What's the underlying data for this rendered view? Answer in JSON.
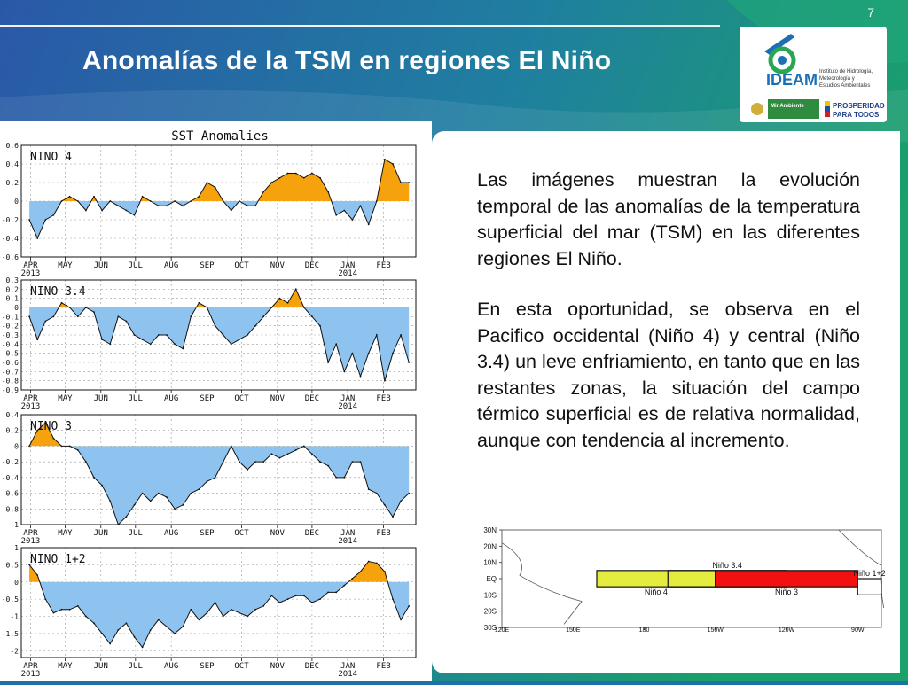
{
  "slide": {
    "number": "7",
    "title": "Anomalías de la TSM en regiones El Niño"
  },
  "logos": {
    "ideam_text": "IDEAM",
    "ideam_subtitle": [
      "Instituto de Hidrología,",
      "Meteorología y",
      "Estudios Ambientales"
    ],
    "minambiente_text": "MinAmbiente",
    "prosperidad_text": [
      "PROSPERIDAD",
      "PARA TODOS"
    ]
  },
  "description": {
    "paragraphs": [
      "Las imágenes muestran la evolución temporal de las anomalías de la temperatura superficial del mar (TSM) en las diferentes regiones El Niño.",
      "En esta oportunidad, se observa en el Pacifico occidental (Niño 4) y central (Niño 3.4) un leve enfriamiento, en tanto que en las restantes zonas, la situación del campo térmico superficial es de relativa normalidad, aunque con tendencia al incremento."
    ]
  },
  "colors": {
    "positive_fill": "#f5a20c",
    "negative_fill": "#8ec3f0",
    "line": "#111111",
    "nino4_box": "#e4ec3e",
    "nino3_box": "#f21010"
  },
  "chart_data": [
    {
      "type": "area",
      "title": "SST Anomalies",
      "label": "NINO 4",
      "x": [
        "2013-03-31",
        "2013-04-07",
        "2013-04-14",
        "2013-04-21",
        "2013-04-28",
        "2013-05-05",
        "2013-05-12",
        "2013-05-19",
        "2013-05-26",
        "2013-06-02",
        "2013-06-09",
        "2013-06-16",
        "2013-06-23",
        "2013-06-30",
        "2013-07-07",
        "2013-07-14",
        "2013-07-21",
        "2013-07-28",
        "2013-08-04",
        "2013-08-11",
        "2013-08-18",
        "2013-08-25",
        "2013-09-01",
        "2013-09-08",
        "2013-09-15",
        "2013-09-22",
        "2013-09-29",
        "2013-10-06",
        "2013-10-13",
        "2013-10-20",
        "2013-10-27",
        "2013-11-03",
        "2013-11-10",
        "2013-11-17",
        "2013-11-24",
        "2013-12-01",
        "2013-12-08",
        "2013-12-15",
        "2013-12-22",
        "2013-12-29",
        "2014-01-05",
        "2014-01-12",
        "2014-01-19",
        "2014-01-26",
        "2014-02-02",
        "2014-02-09",
        "2014-02-16",
        "2014-02-23"
      ],
      "values": [
        -0.2,
        -0.4,
        -0.2,
        -0.15,
        0,
        0.05,
        0,
        -0.1,
        0.05,
        -0.1,
        0,
        -0.05,
        -0.1,
        -0.15,
        0.05,
        0,
        -0.05,
        -0.05,
        0,
        -0.05,
        0,
        0.05,
        0.2,
        0.15,
        0,
        -0.1,
        0,
        -0.05,
        -0.05,
        0.1,
        0.2,
        0.25,
        0.3,
        0.3,
        0.25,
        0.3,
        0.25,
        0.1,
        -0.15,
        -0.1,
        -0.2,
        -0.05,
        -0.25,
        0,
        0.45,
        0.4,
        0.2,
        0.2
      ],
      "ylim": [
        -0.6,
        0.6
      ],
      "yticks": [
        "0.6",
        "0.4",
        "0.2",
        "0",
        "-0.2",
        "-0.4",
        "-0.6"
      ],
      "xticks": [
        "APR",
        "MAY",
        "JUN",
        "JUL",
        "AUG",
        "SEP",
        "OCT",
        "NOV",
        "DEC",
        "JAN",
        "FEB"
      ],
      "year_labels": [
        "2013",
        "2014"
      ],
      "grid": true
    },
    {
      "type": "area",
      "label": "NINO 3.4",
      "x": [
        "2013-03-31",
        "2013-04-07",
        "2013-04-14",
        "2013-04-21",
        "2013-04-28",
        "2013-05-05",
        "2013-05-12",
        "2013-05-19",
        "2013-05-26",
        "2013-06-02",
        "2013-06-09",
        "2013-06-16",
        "2013-06-23",
        "2013-06-30",
        "2013-07-07",
        "2013-07-14",
        "2013-07-21",
        "2013-07-28",
        "2013-08-04",
        "2013-08-11",
        "2013-08-18",
        "2013-08-25",
        "2013-09-01",
        "2013-09-08",
        "2013-09-15",
        "2013-09-22",
        "2013-09-29",
        "2013-10-06",
        "2013-10-13",
        "2013-10-20",
        "2013-10-27",
        "2013-11-03",
        "2013-11-10",
        "2013-11-17",
        "2013-11-24",
        "2013-12-01",
        "2013-12-08",
        "2013-12-15",
        "2013-12-22",
        "2013-12-29",
        "2014-01-05",
        "2014-01-12",
        "2014-01-19",
        "2014-01-26",
        "2014-02-02",
        "2014-02-09",
        "2014-02-16",
        "2014-02-23"
      ],
      "values": [
        -0.1,
        -0.35,
        -0.15,
        -0.1,
        0.05,
        0,
        -0.1,
        0,
        -0.05,
        -0.35,
        -0.4,
        -0.1,
        -0.15,
        -0.3,
        -0.35,
        -0.4,
        -0.3,
        -0.3,
        -0.4,
        -0.45,
        -0.1,
        0.05,
        0,
        -0.2,
        -0.3,
        -0.4,
        -0.35,
        -0.3,
        -0.2,
        -0.1,
        0,
        0.1,
        0.05,
        0.2,
        0,
        -0.1,
        -0.2,
        -0.6,
        -0.4,
        -0.7,
        -0.5,
        -0.75,
        -0.5,
        -0.3,
        -0.8,
        -0.5,
        -0.3,
        -0.6
      ],
      "ylim": [
        -0.9,
        0.3
      ],
      "yticks": [
        "0.3",
        "0.2",
        "0.1",
        "0",
        "-0.1",
        "-0.2",
        "-0.3",
        "-0.4",
        "-0.5",
        "-0.6",
        "-0.7",
        "-0.8",
        "-0.9"
      ],
      "xticks": [
        "APR",
        "MAY",
        "JUN",
        "JUL",
        "AUG",
        "SEP",
        "OCT",
        "NOV",
        "DEC",
        "JAN",
        "FEB"
      ],
      "year_labels": [
        "2013",
        "2014"
      ],
      "grid": true
    },
    {
      "type": "area",
      "label": "NINO 3",
      "x": [
        "2013-03-31",
        "2013-04-07",
        "2013-04-14",
        "2013-04-21",
        "2013-04-28",
        "2013-05-05",
        "2013-05-12",
        "2013-05-19",
        "2013-05-26",
        "2013-06-02",
        "2013-06-09",
        "2013-06-16",
        "2013-06-23",
        "2013-06-30",
        "2013-07-07",
        "2013-07-14",
        "2013-07-21",
        "2013-07-28",
        "2013-08-04",
        "2013-08-11",
        "2013-08-18",
        "2013-08-25",
        "2013-09-01",
        "2013-09-08",
        "2013-09-15",
        "2013-09-22",
        "2013-09-29",
        "2013-10-06",
        "2013-10-13",
        "2013-10-20",
        "2013-10-27",
        "2013-11-03",
        "2013-11-10",
        "2013-11-17",
        "2013-11-24",
        "2013-12-01",
        "2013-12-08",
        "2013-12-15",
        "2013-12-22",
        "2013-12-29",
        "2014-01-05",
        "2014-01-12",
        "2014-01-19",
        "2014-01-26",
        "2014-02-02",
        "2014-02-09",
        "2014-02-16",
        "2014-02-23"
      ],
      "values": [
        0,
        0.2,
        0.3,
        0.1,
        0,
        0,
        -0.05,
        -0.2,
        -0.4,
        -0.5,
        -0.7,
        -1.0,
        -0.9,
        -0.75,
        -0.6,
        -0.7,
        -0.6,
        -0.65,
        -0.8,
        -0.75,
        -0.6,
        -0.55,
        -0.45,
        -0.4,
        -0.2,
        0,
        -0.2,
        -0.3,
        -0.2,
        -0.2,
        -0.1,
        -0.15,
        -0.1,
        -0.05,
        0,
        -0.1,
        -0.2,
        -0.25,
        -0.4,
        -0.4,
        -0.2,
        -0.2,
        -0.55,
        -0.6,
        -0.75,
        -0.9,
        -0.7,
        -0.6
      ],
      "ylim": [
        -1.0,
        0.4
      ],
      "yticks": [
        "0.4",
        "0.2",
        "0",
        "-0.2",
        "-0.4",
        "-0.6",
        "-0.8",
        "-1"
      ],
      "xticks": [
        "APR",
        "MAY",
        "JUN",
        "JUL",
        "AUG",
        "SEP",
        "OCT",
        "NOV",
        "DEC",
        "JAN",
        "FEB"
      ],
      "year_labels": [
        "2013",
        "2014"
      ],
      "grid": true
    },
    {
      "type": "area",
      "label": "NINO 1+2",
      "x": [
        "2013-03-31",
        "2013-04-07",
        "2013-04-14",
        "2013-04-21",
        "2013-04-28",
        "2013-05-05",
        "2013-05-12",
        "2013-05-19",
        "2013-05-26",
        "2013-06-02",
        "2013-06-09",
        "2013-06-16",
        "2013-06-23",
        "2013-06-30",
        "2013-07-07",
        "2013-07-14",
        "2013-07-21",
        "2013-07-28",
        "2013-08-04",
        "2013-08-11",
        "2013-08-18",
        "2013-08-25",
        "2013-09-01",
        "2013-09-08",
        "2013-09-15",
        "2013-09-22",
        "2013-09-29",
        "2013-10-06",
        "2013-10-13",
        "2013-10-20",
        "2013-10-27",
        "2013-11-03",
        "2013-11-10",
        "2013-11-17",
        "2013-11-24",
        "2013-12-01",
        "2013-12-08",
        "2013-12-15",
        "2013-12-22",
        "2013-12-29",
        "2014-01-05",
        "2014-01-12",
        "2014-01-19",
        "2014-01-26",
        "2014-02-02",
        "2014-02-09",
        "2014-02-16",
        "2014-02-23"
      ],
      "values": [
        0.5,
        0.2,
        -0.5,
        -0.9,
        -0.8,
        -0.8,
        -0.7,
        -1.0,
        -1.2,
        -1.5,
        -1.8,
        -1.4,
        -1.2,
        -1.6,
        -1.9,
        -1.4,
        -1.1,
        -1.3,
        -1.5,
        -1.3,
        -0.8,
        -1.1,
        -0.9,
        -0.6,
        -1.0,
        -0.8,
        -0.9,
        -1.0,
        -0.8,
        -0.7,
        -0.4,
        -0.6,
        -0.5,
        -0.4,
        -0.4,
        -0.6,
        -0.5,
        -0.3,
        -0.3,
        -0.1,
        0.1,
        0.3,
        0.6,
        0.55,
        0.3,
        -0.5,
        -1.1,
        -0.7
      ],
      "ylim": [
        -2.2,
        1.0
      ],
      "yticks": [
        "1",
        "0.5",
        "0",
        "-0.5",
        "-1",
        "-1.5",
        "-2"
      ],
      "xticks": [
        "APR",
        "MAY",
        "JUN",
        "JUL",
        "AUG",
        "SEP",
        "OCT",
        "NOV",
        "DEC",
        "JAN",
        "FEB"
      ],
      "year_labels": [
        "2013",
        "2014"
      ],
      "grid": true
    }
  ],
  "map": {
    "lat_labels": [
      "30N",
      "20N",
      "10N",
      "EQ",
      "10S",
      "20S",
      "30S"
    ],
    "lon_labels": [
      "120E",
      "150E",
      "180",
      "150W",
      "120W",
      "90W"
    ],
    "regions": [
      {
        "name": "Niño 4",
        "lon_from": 160,
        "lon_to": 210,
        "lat_from": -5,
        "lat_to": 5,
        "color": "#e4ec3e",
        "label_pos": "below"
      },
      {
        "name": "Niño 3.4",
        "lon_from": 190,
        "lon_to": 240,
        "lat_from": -5,
        "lat_to": 5,
        "color": "none",
        "label_pos": "above"
      },
      {
        "name": "Niño 3",
        "lon_from": 210,
        "lon_to": 270,
        "lat_from": -5,
        "lat_to": 5,
        "color": "#f21010",
        "label_pos": "below"
      },
      {
        "name": "Niño 1+2",
        "lon_from": 270,
        "lon_to": 280,
        "lat_from": -10,
        "lat_to": 0,
        "color": "none",
        "label_pos": "above"
      }
    ]
  }
}
